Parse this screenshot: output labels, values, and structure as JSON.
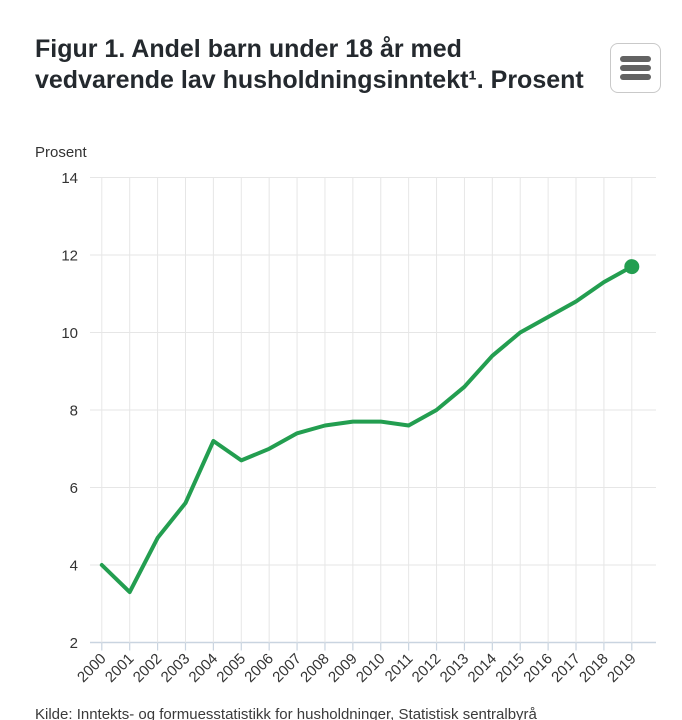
{
  "header": {
    "title_line1": "Figur 1. Andel barn under 18 år med",
    "title_line2": "vedvarende lav husholdningsinntekt¹. Prosent",
    "menu_icon": "hamburger-menu-icon"
  },
  "chart_data": {
    "type": "line",
    "title": "Figur 1. Andel barn under 18 år med vedvarende lav husholdningsinntekt¹. Prosent",
    "unit_label": "Prosent",
    "categories": [
      "2000",
      "2001",
      "2002",
      "2003",
      "2004",
      "2005",
      "2006",
      "2007",
      "2008",
      "2009",
      "2010",
      "2011",
      "2012",
      "2013",
      "2014",
      "2015",
      "2016",
      "2017",
      "2018",
      "2019"
    ],
    "series": [
      {
        "values": [
          4.0,
          3.3,
          4.7,
          5.6,
          7.2,
          6.7,
          7.0,
          7.4,
          7.6,
          7.7,
          7.7,
          7.6,
          8.0,
          8.6,
          9.4,
          10.0,
          10.4,
          10.8,
          11.3,
          11.7
        ],
        "color": "#239e50"
      }
    ],
    "ylim": [
      2,
      14
    ],
    "ytick_step": 2,
    "yticks": [
      "2",
      "4",
      "6",
      "8",
      "10",
      "12",
      "14"
    ],
    "grid": true,
    "x_label_rotation": -45,
    "legend": "none",
    "last_point_marker": true
  },
  "footer": {
    "source": "Kilde: Inntekts- og formuesstatistikk for husholdninger, Statistisk sentralbyrå"
  },
  "colors": {
    "line": "#239e50",
    "grid": "#e6e6e6",
    "axis": "#c9d4e0",
    "tick_text": "#333333",
    "title_text": "#24292e"
  }
}
